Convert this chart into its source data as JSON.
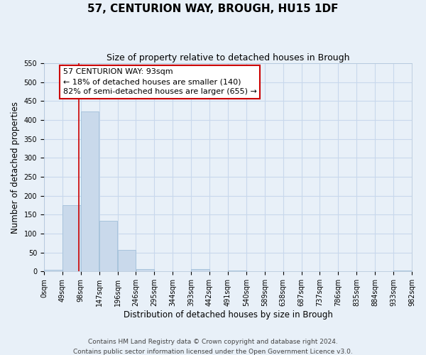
{
  "title": "57, CENTURION WAY, BROUGH, HU15 1DF",
  "subtitle": "Size of property relative to detached houses in Brough",
  "xlabel": "Distribution of detached houses by size in Brough",
  "ylabel": "Number of detached properties",
  "bar_edges": [
    0,
    49,
    98,
    147,
    196,
    245,
    294,
    343,
    392,
    441,
    490,
    539,
    588,
    637,
    686,
    735,
    784,
    833,
    882,
    931,
    980
  ],
  "bar_heights": [
    5,
    175,
    422,
    133,
    57,
    7,
    0,
    0,
    6,
    0,
    3,
    0,
    0,
    0,
    0,
    0,
    0,
    0,
    0,
    2
  ],
  "tick_labels": [
    "0sqm",
    "49sqm",
    "98sqm",
    "147sqm",
    "196sqm",
    "246sqm",
    "295sqm",
    "344sqm",
    "393sqm",
    "442sqm",
    "491sqm",
    "540sqm",
    "589sqm",
    "638sqm",
    "687sqm",
    "737sqm",
    "786sqm",
    "835sqm",
    "884sqm",
    "933sqm",
    "982sqm"
  ],
  "bar_color": "#c9d9eb",
  "bar_edge_color": "#a8c4dc",
  "grid_color": "#c8d8ec",
  "bg_color": "#e8f0f8",
  "vline_x": 93,
  "vline_color": "#cc0000",
  "annotation_text": "57 CENTURION WAY: 93sqm\n← 18% of detached houses are smaller (140)\n82% of semi-detached houses are larger (655) →",
  "annotation_box_color": "#ffffff",
  "annotation_box_edge": "#cc0000",
  "ylim": [
    0,
    550
  ],
  "yticks": [
    0,
    50,
    100,
    150,
    200,
    250,
    300,
    350,
    400,
    450,
    500,
    550
  ],
  "footer_line1": "Contains HM Land Registry data © Crown copyright and database right 2024.",
  "footer_line2": "Contains public sector information licensed under the Open Government Licence v3.0.",
  "title_fontsize": 11,
  "subtitle_fontsize": 9,
  "axis_label_fontsize": 8.5,
  "tick_fontsize": 7,
  "annotation_fontsize": 8,
  "footer_fontsize": 6.5
}
